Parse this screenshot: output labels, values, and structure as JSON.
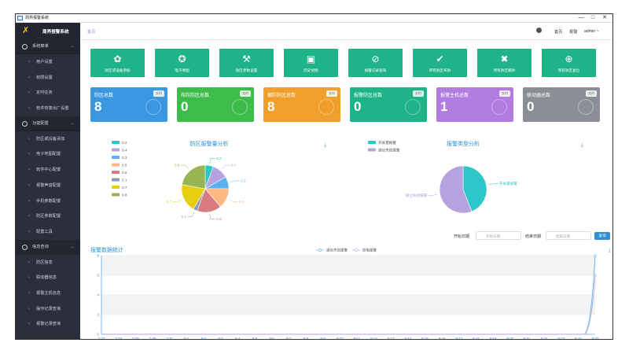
{
  "window": {
    "title": "周界报警系统",
    "controls": [
      "—",
      "□",
      "✕"
    ]
  },
  "sidebar": {
    "brand": "周界报警系统",
    "groups": [
      {
        "label": "系统菜单",
        "items": [
          {
            "label": "用户设置",
            "icon": "user-icon"
          },
          {
            "label": "权限设置",
            "icon": "permission-icon"
          },
          {
            "label": "定时任务",
            "icon": "clock-icon"
          },
          {
            "label": "软件恢复出厂设置",
            "icon": "reset-icon"
          }
        ]
      },
      {
        "label": "功能配置",
        "items": [
          {
            "label": "防区或设备添加",
            "icon": "plus-icon"
          },
          {
            "label": "电子地图配置",
            "icon": "map-icon"
          },
          {
            "label": "软件中心配置",
            "icon": "center-icon"
          },
          {
            "label": "报警声音配置",
            "icon": "sound-icon"
          },
          {
            "label": "手机参数配置",
            "icon": "phone-icon"
          },
          {
            "label": "防区参数配置",
            "icon": "zone-icon"
          },
          {
            "label": "配置工具",
            "icon": "tool-icon"
          }
        ]
      },
      {
        "label": "信息查询",
        "items": [
          {
            "label": "防区信息",
            "icon": "info-icon"
          },
          {
            "label": "联动器信息",
            "icon": "info-icon"
          },
          {
            "label": "报警主机信息",
            "icon": "info-icon"
          },
          {
            "label": "操作记录查询",
            "icon": "info-icon"
          },
          {
            "label": "报警记录查询",
            "icon": "info-icon"
          }
        ]
      }
    ]
  },
  "topbar": {
    "breadcrumb": "首页",
    "home": "首页",
    "alarm": "报警",
    "user": "admin ~"
  },
  "tiles": [
    {
      "label": "防区或设备添加",
      "icon": "gear-icon",
      "glyph": "✿"
    },
    {
      "label": "电子地图",
      "icon": "compass-icon",
      "glyph": "✪"
    },
    {
      "label": "防区参数设置",
      "icon": "wrench-icon",
      "glyph": "⚒"
    },
    {
      "label": "历史视频",
      "icon": "calendar-icon",
      "glyph": "▣"
    },
    {
      "label": "报警记录查询",
      "icon": "magnifier-icon",
      "glyph": "⊘"
    },
    {
      "label": "所有防区布防",
      "icon": "check-icon",
      "glyph": "✔"
    },
    {
      "label": "所有防区撤防",
      "icon": "cross-icon",
      "glyph": "✖"
    },
    {
      "label": "所有防区复位",
      "icon": "target-icon",
      "glyph": "⊕"
    }
  ],
  "stats": [
    {
      "label": "防区总数",
      "badge": "实时",
      "value": "8",
      "color": "#3b98e0"
    },
    {
      "label": "布防防区总数",
      "badge": "实时",
      "value": "0",
      "color": "#3ebc4a"
    },
    {
      "label": "撤防防区总数",
      "badge": "实时",
      "value": "8",
      "color": "#ef9f2a"
    },
    {
      "label": "报警防区总数",
      "badge": "实时",
      "value": "0",
      "color": "#1fb38a"
    },
    {
      "label": "报警主机总数",
      "badge": "实时",
      "value": "1",
      "color": "#b27de0"
    },
    {
      "label": "联动器总数",
      "badge": "实时",
      "value": "0",
      "color": "#8a8f96"
    }
  ],
  "filters": {
    "start_label": "开始日期",
    "start_placeholder": "开始日期",
    "end_label": "结束日期",
    "end_placeholder": "结束日期",
    "query": "查询"
  },
  "chart_data": [
    {
      "type": "pie",
      "title": "防区报警量分析",
      "legend": [
        "0.2",
        "0.4",
        "0.3",
        "0.5",
        "0.6",
        "0.1",
        "0.7",
        "0.8"
      ],
      "colors": [
        "#2ec7c9",
        "#b6a2de",
        "#5ab1ef",
        "#ffb980",
        "#d87a80",
        "#8d98b3",
        "#e5cf0d",
        "#97b552"
      ],
      "values": [
        0.2,
        0.4,
        0.3,
        0.5,
        0.6,
        0.1,
        0.7,
        0.8
      ],
      "slice_labels": [
        "0.2",
        "0.4",
        "0.3",
        "0.5",
        "0.6",
        "0.1",
        "0.7",
        "0.8"
      ]
    },
    {
      "type": "pie",
      "title": "报警类型分析",
      "legend": [
        "开关量报警",
        "通信失败报警"
      ],
      "colors": [
        "#2ec7c9",
        "#b6a2de"
      ],
      "values": [
        44,
        56
      ],
      "slice_labels": [
        "开关量报警",
        "通信失败报警"
      ]
    },
    {
      "type": "line",
      "title": "报警数据统计",
      "series_names": [
        "通信失败报警",
        "掉电报警"
      ],
      "colors": [
        "#5ab1ef",
        "#b6a2de"
      ],
      "categories": [
        "7-27",
        "7-28",
        "7-29",
        "7-30",
        "7-31",
        "8-1",
        "8-2",
        "8-3",
        "8-4",
        "8-5",
        "8-6",
        "8-7",
        "8-8",
        "8-9",
        "8-10",
        "8-11",
        "8-12",
        "8-13",
        "8-14",
        "8-15",
        "8-16",
        "8-17",
        "8-18",
        "8-19",
        "8-20",
        "8-21",
        "8-22",
        "8-23",
        "8-24",
        "8-25"
      ],
      "series": [
        {
          "values": [
            0,
            0,
            0,
            0,
            0,
            0,
            0,
            0,
            0,
            0,
            0,
            0,
            0,
            0,
            0,
            0,
            0,
            0,
            0,
            0,
            0,
            0,
            0,
            0,
            0,
            0,
            0,
            0,
            0,
            8
          ]
        },
        {
          "values": [
            0,
            0,
            0,
            0,
            0,
            0,
            0,
            0,
            0,
            0,
            0,
            0,
            0,
            0,
            0,
            0,
            0,
            0,
            0,
            0,
            0,
            0,
            0,
            0,
            0,
            0,
            0,
            0,
            0,
            6
          ]
        }
      ],
      "yticks": [
        "0",
        "2",
        "4",
        "6",
        "8"
      ],
      "ylim": [
        0,
        8
      ]
    }
  ]
}
